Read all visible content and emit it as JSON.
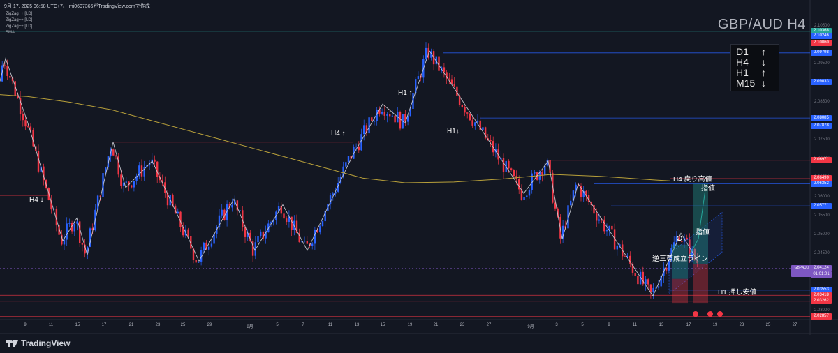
{
  "header": {
    "text": "9月 17, 2025 06:58 UTC+7、 mi0607366がTradingView.comで作成"
  },
  "indicators": [
    "ZigZag++ [LD]",
    "ZigZag++ [LD]",
    "ZigZag++ [LD]",
    "SMA"
  ],
  "watermark": "GBP/AUD H4",
  "timeframes": [
    {
      "label": "D1",
      "dir": "↑"
    },
    {
      "label": "H4",
      "dir": "↓"
    },
    {
      "label": "H1",
      "dir": "↑"
    },
    {
      "label": "M15",
      "dir": "↓"
    }
  ],
  "logo_text": "TradingView",
  "colors": {
    "background": "#131722",
    "bull": "#2962ff",
    "bear": "#f23645",
    "zigzag": "#d1d4dc",
    "sma": "#b8a03a",
    "level_blue": "#2962ff",
    "level_red": "#f23645",
    "symbol_badge": "#7e57c2"
  },
  "annotations": {
    "h4_down": "H4 ↓",
    "h4_up": "H4 ↑",
    "h1_up": "H1 ↑",
    "h1_down": "H1↓",
    "h4_pullback_high": "H4 戻り高値",
    "limit_upper": "指値",
    "limit_lower": "指値",
    "inverse_hs_line": "逆三尊成立ライン",
    "h1_pullback_low": "H1 押し安値"
  },
  "symbol_badge": {
    "symbol": "GBPAUD",
    "price": "2.04124",
    "countdown": "01:01:01"
  },
  "chart_data": {
    "type": "candlestick",
    "title": "GBP/AUD H4",
    "xlabel": "",
    "ylabel": "",
    "ylim": [
      2.0278,
      2.1086
    ],
    "y_ticks": [
      2.03,
      2.035,
      2.04,
      2.045,
      2.05,
      2.055,
      2.06,
      2.065,
      2.07,
      2.075,
      2.08,
      2.085,
      2.09,
      2.095,
      2.1,
      2.105
    ],
    "y_tick_labels": [
      "2.03000",
      "2.03500",
      "2.04000",
      "2.04500",
      "2.05000",
      "2.05500",
      "2.06000",
      "2.06500",
      "2.07000",
      "2.07500",
      "2.08000",
      "2.08500",
      "2.09000",
      "2.09500",
      "2.10000",
      "2.10500"
    ],
    "x_ticks": [
      "9",
      "11",
      "15",
      "17",
      "21",
      "23",
      "25",
      "29",
      "8月",
      "5",
      "7",
      "11",
      "13",
      "15",
      "19",
      "21",
      "23",
      "27",
      "9月",
      "3",
      "5",
      "9",
      "11",
      "13",
      "17",
      "19",
      "23",
      "25",
      "27"
    ],
    "price_levels": [
      {
        "value": 2.10368,
        "label": "2.10368",
        "color": "#26a69a"
      },
      {
        "value": 2.10246,
        "label": "2.10246",
        "color": "#2962ff"
      },
      {
        "value": 2.1006,
        "label": "2.10060",
        "color": "#f23645"
      },
      {
        "value": 2.09798,
        "label": "2.09798",
        "color": "#2962ff"
      },
      {
        "value": 2.09033,
        "label": "2.09033",
        "color": "#2962ff"
      },
      {
        "value": 2.08085,
        "label": "2.08085",
        "color": "#2962ff"
      },
      {
        "value": 2.07878,
        "label": "2.07878",
        "color": "#2962ff"
      },
      {
        "value": 2.06971,
        "label": "2.06971",
        "color": "#f23645"
      },
      {
        "value": 2.0649,
        "label": "2.06490",
        "color": "#f23645"
      },
      {
        "value": 2.06352,
        "label": "2.06352",
        "color": "#2962ff"
      },
      {
        "value": 2.05771,
        "label": "2.05771",
        "color": "#2962ff"
      },
      {
        "value": 2.04124,
        "label": "2.04124",
        "color": "#7e57c2"
      },
      {
        "value": 2.03553,
        "label": "2.03553",
        "color": "#2962ff"
      },
      {
        "value": 2.03418,
        "label": "2.03418",
        "color": "#f23645"
      },
      {
        "value": 2.03262,
        "label": "2.03262",
        "color": "#f23645"
      },
      {
        "value": 2.02857,
        "label": "2.02857",
        "color": "#f23645"
      }
    ],
    "zigzag": [
      [
        0,
        2.0905
      ],
      [
        8,
        2.0965
      ],
      [
        40,
        2.0795
      ],
      [
        90,
        2.0485
      ],
      [
        110,
        2.0545
      ],
      [
        125,
        2.0448
      ],
      [
        162,
        2.0745
      ],
      [
        180,
        2.0625
      ],
      [
        218,
        2.0695
      ],
      [
        285,
        2.0432
      ],
      [
        335,
        2.0595
      ],
      [
        365,
        2.046
      ],
      [
        405,
        2.058
      ],
      [
        440,
        2.046
      ],
      [
        505,
        2.071
      ],
      [
        548,
        2.0845
      ],
      [
        580,
        2.0795
      ],
      [
        615,
        2.0985
      ],
      [
        660,
        2.086
      ],
      [
        750,
        2.061
      ],
      [
        785,
        2.0695
      ],
      [
        805,
        2.049
      ],
      [
        828,
        2.0635
      ],
      [
        935,
        2.034
      ],
      [
        975,
        2.0505
      ],
      [
        1000,
        2.043
      ]
    ],
    "sma": [
      [
        0,
        2.087
      ],
      [
        40,
        2.0865
      ],
      [
        100,
        2.085
      ],
      [
        160,
        2.083
      ],
      [
        220,
        2.08
      ],
      [
        300,
        2.076
      ],
      [
        380,
        2.072
      ],
      [
        460,
        2.068
      ],
      [
        520,
        2.065
      ],
      [
        580,
        2.0638
      ],
      [
        650,
        2.064
      ],
      [
        720,
        2.0648
      ],
      [
        790,
        2.066
      ],
      [
        860,
        2.0655
      ],
      [
        940,
        2.0645
      ],
      [
        960,
        2.0643
      ]
    ]
  }
}
